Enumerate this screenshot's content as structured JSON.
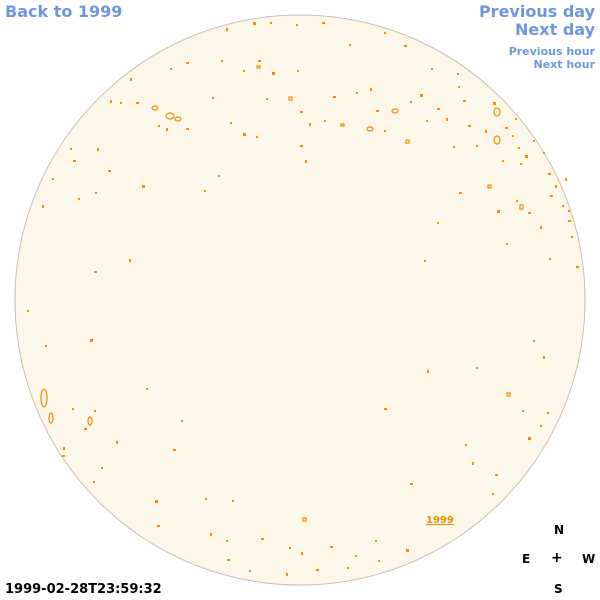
{
  "nav": {
    "back": "Back to 1999",
    "previous_day": "Previous day",
    "next_day": "Next day",
    "previous_hour": "Previous hour",
    "next_hour": "Next hour"
  },
  "year_link": "1999",
  "compass": {
    "n": "N",
    "e": "E",
    "center": "+",
    "w": "W",
    "s": "S"
  },
  "timestamp": "1999-02-28T23:59:32",
  "colors": {
    "disk_fill": "#fdf7ea",
    "disk_edge": "#c8c0b0",
    "contour": "#ee8e00",
    "link": "#6f97df"
  }
}
